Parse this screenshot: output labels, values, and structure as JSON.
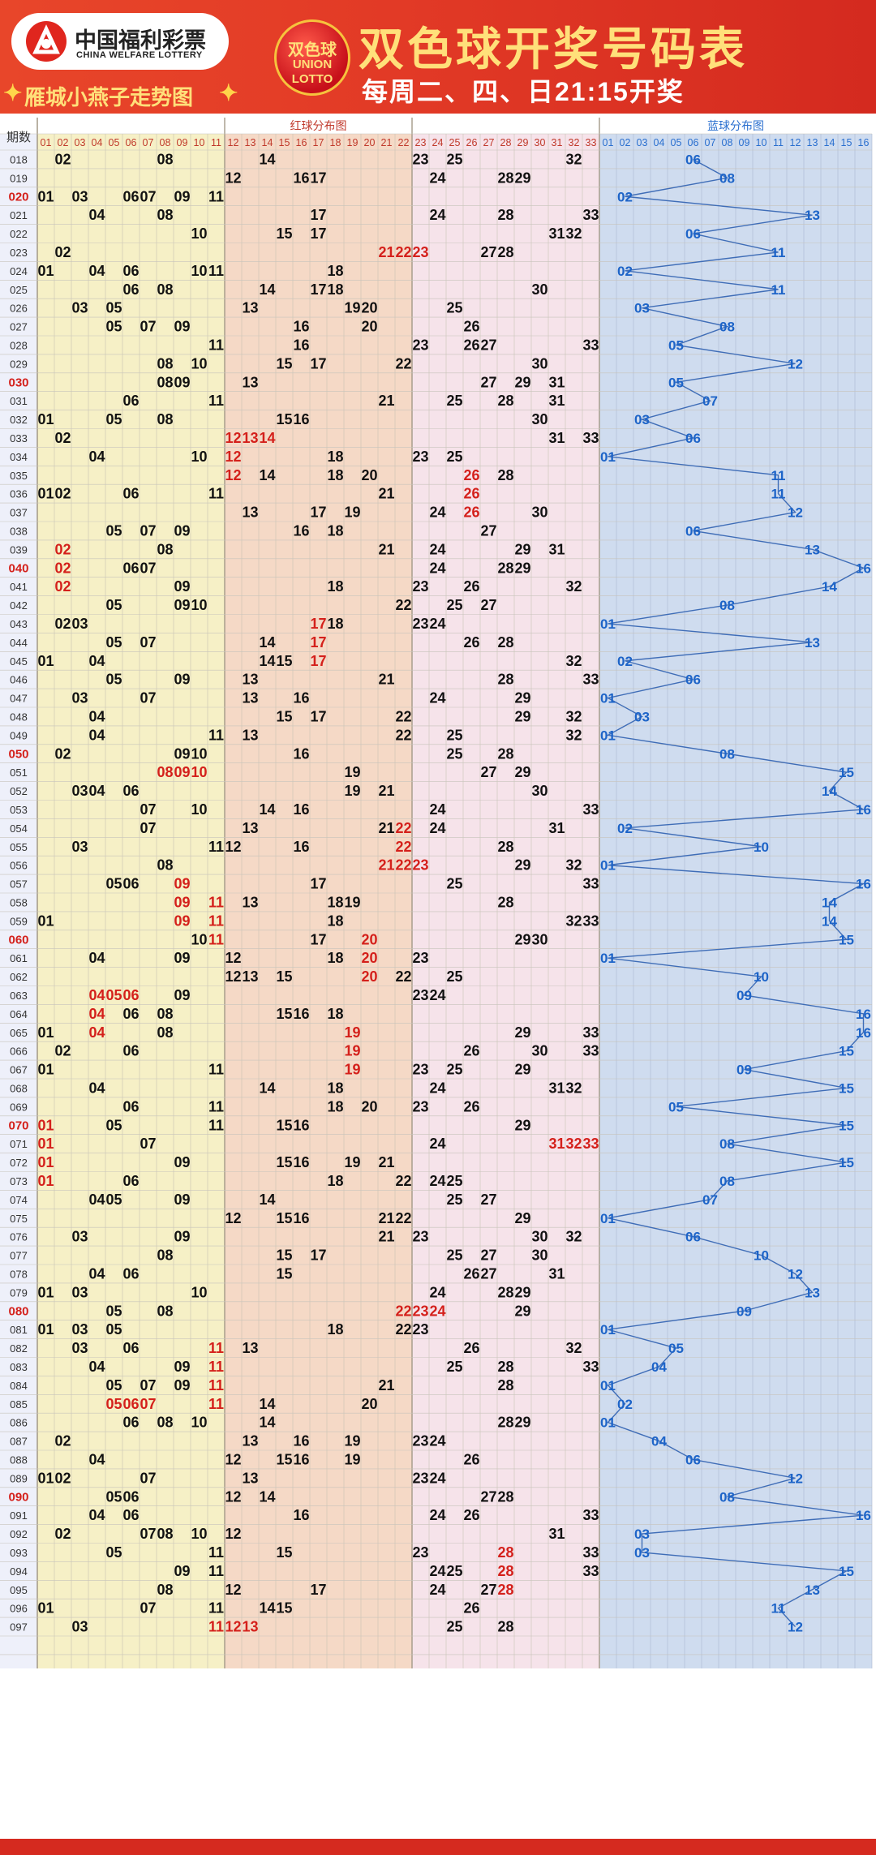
{
  "header": {
    "logo_cn": "中国福利彩票",
    "logo_en": "CHINA WELFARE LOTTERY",
    "brand": "雁城小燕子走势图",
    "ball_cn": "双色球",
    "ball_en1": "UNION",
    "ball_en2": "LOTTO",
    "title": "双色球开奖号码表",
    "subtitle": "每周二、四、日21:15开奖"
  },
  "colors": {
    "red_zone_bg_1": "#f6f0c6",
    "red_zone_bg_2": "#f5d9c6",
    "red_zone_bg_3": "#f6e3ea",
    "blue_zone_bg": "#cfdcef",
    "highlight_red": "#d4201b",
    "blue_ball": "#1d64c8",
    "number_black": "#111111"
  },
  "chart_data": {
    "type": "table",
    "period_header": "期数",
    "red_section_title": "红球分布图",
    "blue_section_title": "蓝球分布图",
    "red_columns": [
      "01",
      "02",
      "03",
      "04",
      "05",
      "06",
      "07",
      "08",
      "09",
      "10",
      "11",
      "12",
      "13",
      "14",
      "15",
      "16",
      "17",
      "18",
      "19",
      "20",
      "21",
      "22",
      "23",
      "24",
      "25",
      "26",
      "27",
      "28",
      "29",
      "30",
      "31",
      "32",
      "33"
    ],
    "blue_columns": [
      "01",
      "02",
      "03",
      "04",
      "05",
      "06",
      "07",
      "08",
      "09",
      "10",
      "11",
      "12",
      "13",
      "14",
      "15",
      "16"
    ],
    "draws": [
      {
        "period": "018",
        "red": [
          2,
          8,
          14,
          23,
          25,
          32
        ],
        "blue": 6,
        "hl": []
      },
      {
        "period": "019",
        "red": [
          12,
          16,
          17,
          24,
          28,
          29
        ],
        "blue": 8,
        "hl": []
      },
      {
        "period": "020",
        "red": [
          1,
          3,
          6,
          7,
          9,
          11
        ],
        "blue": 2,
        "hl": []
      },
      {
        "period": "021",
        "red": [
          4,
          8,
          17,
          24,
          28,
          33
        ],
        "blue": 13,
        "hl": []
      },
      {
        "period": "022",
        "red": [
          10,
          15,
          17,
          31,
          32
        ],
        "blue": 6,
        "hl": []
      },
      {
        "period": "023",
        "red": [
          2,
          21,
          22,
          23,
          27,
          28
        ],
        "blue": 11,
        "hl": [
          21,
          22,
          23
        ]
      },
      {
        "period": "024",
        "red": [
          1,
          4,
          6,
          10,
          11,
          18
        ],
        "blue": 2,
        "hl": []
      },
      {
        "period": "025",
        "red": [
          6,
          8,
          14,
          17,
          18,
          30
        ],
        "blue": 11,
        "hl": []
      },
      {
        "period": "026",
        "red": [
          3,
          5,
          13,
          19,
          20,
          25
        ],
        "blue": 3,
        "hl": []
      },
      {
        "period": "027",
        "red": [
          5,
          7,
          9,
          16,
          20,
          26
        ],
        "blue": 8,
        "hl": []
      },
      {
        "period": "028",
        "red": [
          11,
          16,
          23,
          26,
          27,
          33
        ],
        "blue": 5,
        "hl": []
      },
      {
        "period": "029",
        "red": [
          8,
          10,
          15,
          17,
          22,
          30
        ],
        "blue": 12,
        "hl": []
      },
      {
        "period": "030",
        "red": [
          8,
          9,
          13,
          27,
          29,
          31
        ],
        "blue": 5,
        "hl": []
      },
      {
        "period": "031",
        "red": [
          6,
          11,
          21,
          25,
          28,
          31
        ],
        "blue": 7,
        "hl": []
      },
      {
        "period": "032",
        "red": [
          1,
          5,
          8,
          15,
          16,
          30
        ],
        "blue": 3,
        "hl": []
      },
      {
        "period": "033",
        "red": [
          2,
          12,
          13,
          14,
          31,
          33
        ],
        "blue": 6,
        "hl": [
          12,
          13,
          14
        ]
      },
      {
        "period": "034",
        "red": [
          4,
          10,
          12,
          18,
          23,
          25
        ],
        "blue": 1,
        "hl": [
          12
        ]
      },
      {
        "period": "035",
        "red": [
          12,
          14,
          18,
          20,
          26,
          28
        ],
        "blue": 11,
        "hl": [
          12,
          26
        ]
      },
      {
        "period": "036",
        "red": [
          1,
          2,
          6,
          11,
          21,
          26
        ],
        "blue": 11,
        "hl": [
          26
        ]
      },
      {
        "period": "037",
        "red": [
          13,
          17,
          19,
          24,
          26,
          30
        ],
        "blue": 12,
        "hl": [
          26
        ]
      },
      {
        "period": "038",
        "red": [
          5,
          7,
          9,
          16,
          18,
          27
        ],
        "blue": 6,
        "hl": []
      },
      {
        "period": "039",
        "red": [
          2,
          8,
          21,
          24,
          29,
          31
        ],
        "blue": 13,
        "hl": [
          2
        ]
      },
      {
        "period": "040",
        "red": [
          2,
          6,
          7,
          24,
          28,
          29
        ],
        "blue": 16,
        "hl": [
          2
        ]
      },
      {
        "period": "041",
        "red": [
          2,
          9,
          18,
          23,
          26,
          32
        ],
        "blue": 14,
        "hl": [
          2
        ]
      },
      {
        "period": "042",
        "red": [
          5,
          9,
          10,
          22,
          25,
          27
        ],
        "blue": 8,
        "hl": []
      },
      {
        "period": "043",
        "red": [
          2,
          3,
          17,
          18,
          23,
          24
        ],
        "blue": 1,
        "hl": [
          17
        ]
      },
      {
        "period": "044",
        "red": [
          5,
          7,
          14,
          17,
          26,
          28
        ],
        "blue": 13,
        "hl": [
          17
        ]
      },
      {
        "period": "045",
        "red": [
          1,
          4,
          14,
          15,
          17,
          32
        ],
        "blue": 2,
        "hl": [
          17
        ]
      },
      {
        "period": "046",
        "red": [
          5,
          9,
          13,
          21,
          28,
          33
        ],
        "blue": 6,
        "hl": []
      },
      {
        "period": "047",
        "red": [
          3,
          7,
          13,
          16,
          24,
          29
        ],
        "blue": 1,
        "hl": []
      },
      {
        "period": "048",
        "red": [
          4,
          15,
          17,
          22,
          29,
          32
        ],
        "blue": 3,
        "hl": []
      },
      {
        "period": "049",
        "red": [
          4,
          11,
          13,
          22,
          25,
          32
        ],
        "blue": 1,
        "hl": []
      },
      {
        "period": "050",
        "red": [
          2,
          9,
          10,
          16,
          25,
          28
        ],
        "blue": 8,
        "hl": []
      },
      {
        "period": "051",
        "red": [
          8,
          9,
          10,
          19,
          27,
          29
        ],
        "blue": 15,
        "hl": [
          8,
          9,
          10
        ]
      },
      {
        "period": "052",
        "red": [
          3,
          4,
          6,
          19,
          21,
          30
        ],
        "blue": 14,
        "hl": []
      },
      {
        "period": "053",
        "red": [
          7,
          10,
          14,
          16,
          24,
          33
        ],
        "blue": 16,
        "hl": []
      },
      {
        "period": "054",
        "red": [
          7,
          13,
          21,
          22,
          24,
          31
        ],
        "blue": 2,
        "hl": [
          22
        ]
      },
      {
        "period": "055",
        "red": [
          3,
          11,
          12,
          16,
          22,
          28
        ],
        "blue": 10,
        "hl": [
          22
        ]
      },
      {
        "period": "056",
        "red": [
          8,
          21,
          22,
          23,
          29,
          32
        ],
        "blue": 1,
        "hl": [
          21,
          22,
          23
        ]
      },
      {
        "period": "057",
        "red": [
          5,
          6,
          9,
          17,
          25,
          33
        ],
        "blue": 16,
        "hl": [
          9
        ]
      },
      {
        "period": "058",
        "red": [
          9,
          11,
          13,
          18,
          19,
          28
        ],
        "blue": 14,
        "hl": [
          9,
          11
        ]
      },
      {
        "period": "059",
        "red": [
          1,
          9,
          11,
          18,
          32,
          33
        ],
        "blue": 14,
        "hl": [
          9,
          11
        ]
      },
      {
        "period": "060",
        "red": [
          10,
          11,
          17,
          20,
          29,
          30
        ],
        "blue": 15,
        "hl": [
          11,
          20
        ]
      },
      {
        "period": "061",
        "red": [
          4,
          9,
          12,
          18,
          20,
          23
        ],
        "blue": 1,
        "hl": [
          20
        ]
      },
      {
        "period": "062",
        "red": [
          12,
          13,
          15,
          20,
          22,
          25
        ],
        "blue": 10,
        "hl": [
          20
        ]
      },
      {
        "period": "063",
        "red": [
          4,
          5,
          6,
          9,
          23,
          24
        ],
        "blue": 9,
        "hl": [
          4,
          5,
          6
        ]
      },
      {
        "period": "064",
        "red": [
          4,
          6,
          8,
          15,
          16,
          18
        ],
        "blue": 16,
        "hl": [
          4
        ]
      },
      {
        "period": "065",
        "red": [
          1,
          4,
          8,
          19,
          29,
          33
        ],
        "blue": 16,
        "hl": [
          4,
          19
        ]
      },
      {
        "period": "066",
        "red": [
          2,
          6,
          19,
          26,
          30,
          33
        ],
        "blue": 15,
        "hl": [
          19
        ]
      },
      {
        "period": "067",
        "red": [
          1,
          11,
          19,
          23,
          25,
          29
        ],
        "blue": 9,
        "hl": [
          19
        ]
      },
      {
        "period": "068",
        "red": [
          4,
          14,
          18,
          24,
          31,
          32
        ],
        "blue": 15,
        "hl": []
      },
      {
        "period": "069",
        "red": [
          6,
          11,
          18,
          20,
          23,
          26
        ],
        "blue": 5,
        "hl": []
      },
      {
        "period": "070",
        "red": [
          1,
          5,
          11,
          15,
          16,
          29
        ],
        "blue": 15,
        "hl": [
          1
        ]
      },
      {
        "period": "071",
        "red": [
          1,
          7,
          24,
          31,
          32,
          33
        ],
        "blue": 8,
        "hl": [
          1,
          31,
          32,
          33
        ]
      },
      {
        "period": "072",
        "red": [
          1,
          9,
          15,
          16,
          19,
          21
        ],
        "blue": 15,
        "hl": [
          1
        ]
      },
      {
        "period": "073",
        "red": [
          1,
          6,
          18,
          22,
          24,
          25
        ],
        "blue": 8,
        "hl": [
          1
        ]
      },
      {
        "period": "074",
        "red": [
          4,
          5,
          9,
          14,
          25,
          27
        ],
        "blue": 7,
        "hl": []
      },
      {
        "period": "075",
        "red": [
          12,
          15,
          16,
          21,
          22,
          29
        ],
        "blue": 1,
        "hl": []
      },
      {
        "period": "076",
        "red": [
          3,
          9,
          21,
          23,
          30,
          32
        ],
        "blue": 6,
        "hl": []
      },
      {
        "period": "077",
        "red": [
          8,
          15,
          17,
          25,
          27,
          30
        ],
        "blue": 10,
        "hl": []
      },
      {
        "period": "078",
        "red": [
          4,
          6,
          15,
          26,
          27,
          31
        ],
        "blue": 12,
        "hl": []
      },
      {
        "period": "079",
        "red": [
          1,
          3,
          10,
          24,
          28,
          29
        ],
        "blue": 13,
        "hl": []
      },
      {
        "period": "080",
        "red": [
          5,
          8,
          22,
          23,
          24,
          29
        ],
        "blue": 9,
        "hl": [
          22,
          23,
          24
        ]
      },
      {
        "period": "081",
        "red": [
          1,
          3,
          5,
          18,
          22,
          23
        ],
        "blue": 1,
        "hl": []
      },
      {
        "period": "082",
        "red": [
          3,
          6,
          11,
          13,
          26,
          32
        ],
        "blue": 5,
        "hl": [
          11
        ]
      },
      {
        "period": "083",
        "red": [
          4,
          9,
          11,
          25,
          28,
          33
        ],
        "blue": 4,
        "hl": [
          11
        ]
      },
      {
        "period": "084",
        "red": [
          5,
          7,
          9,
          11,
          21,
          28
        ],
        "blue": 1,
        "hl": [
          11
        ]
      },
      {
        "period": "085",
        "red": [
          5,
          6,
          7,
          11,
          14,
          20
        ],
        "blue": 2,
        "hl": [
          5,
          6,
          7,
          11
        ]
      },
      {
        "period": "086",
        "red": [
          6,
          8,
          10,
          14,
          28,
          29
        ],
        "blue": 1,
        "hl": []
      },
      {
        "period": "087",
        "red": [
          2,
          13,
          16,
          19,
          23,
          24
        ],
        "blue": 4,
        "hl": []
      },
      {
        "period": "088",
        "red": [
          4,
          12,
          15,
          16,
          19,
          26
        ],
        "blue": 6,
        "hl": []
      },
      {
        "period": "089",
        "red": [
          1,
          2,
          7,
          13,
          23,
          24
        ],
        "blue": 12,
        "hl": []
      },
      {
        "period": "090",
        "red": [
          5,
          6,
          12,
          14,
          27,
          28
        ],
        "blue": 8,
        "hl": []
      },
      {
        "period": "091",
        "red": [
          4,
          6,
          16,
          24,
          26,
          33
        ],
        "blue": 16,
        "hl": []
      },
      {
        "period": "092",
        "red": [
          2,
          7,
          8,
          10,
          12,
          31
        ],
        "blue": 3,
        "hl": []
      },
      {
        "period": "093",
        "red": [
          5,
          11,
          15,
          23,
          28,
          33
        ],
        "blue": 3,
        "hl": [
          28
        ]
      },
      {
        "period": "094",
        "red": [
          9,
          11,
          24,
          25,
          28,
          33
        ],
        "blue": 15,
        "hl": [
          28
        ]
      },
      {
        "period": "095",
        "red": [
          8,
          12,
          17,
          24,
          27,
          28
        ],
        "blue": 13,
        "hl": [
          28
        ]
      },
      {
        "period": "096",
        "red": [
          1,
          7,
          11,
          14,
          15,
          26
        ],
        "blue": 11,
        "hl": []
      },
      {
        "period": "097",
        "red": [
          3,
          11,
          12,
          13,
          25,
          28
        ],
        "blue": 12,
        "hl": [
          11,
          12,
          13
        ]
      }
    ]
  }
}
